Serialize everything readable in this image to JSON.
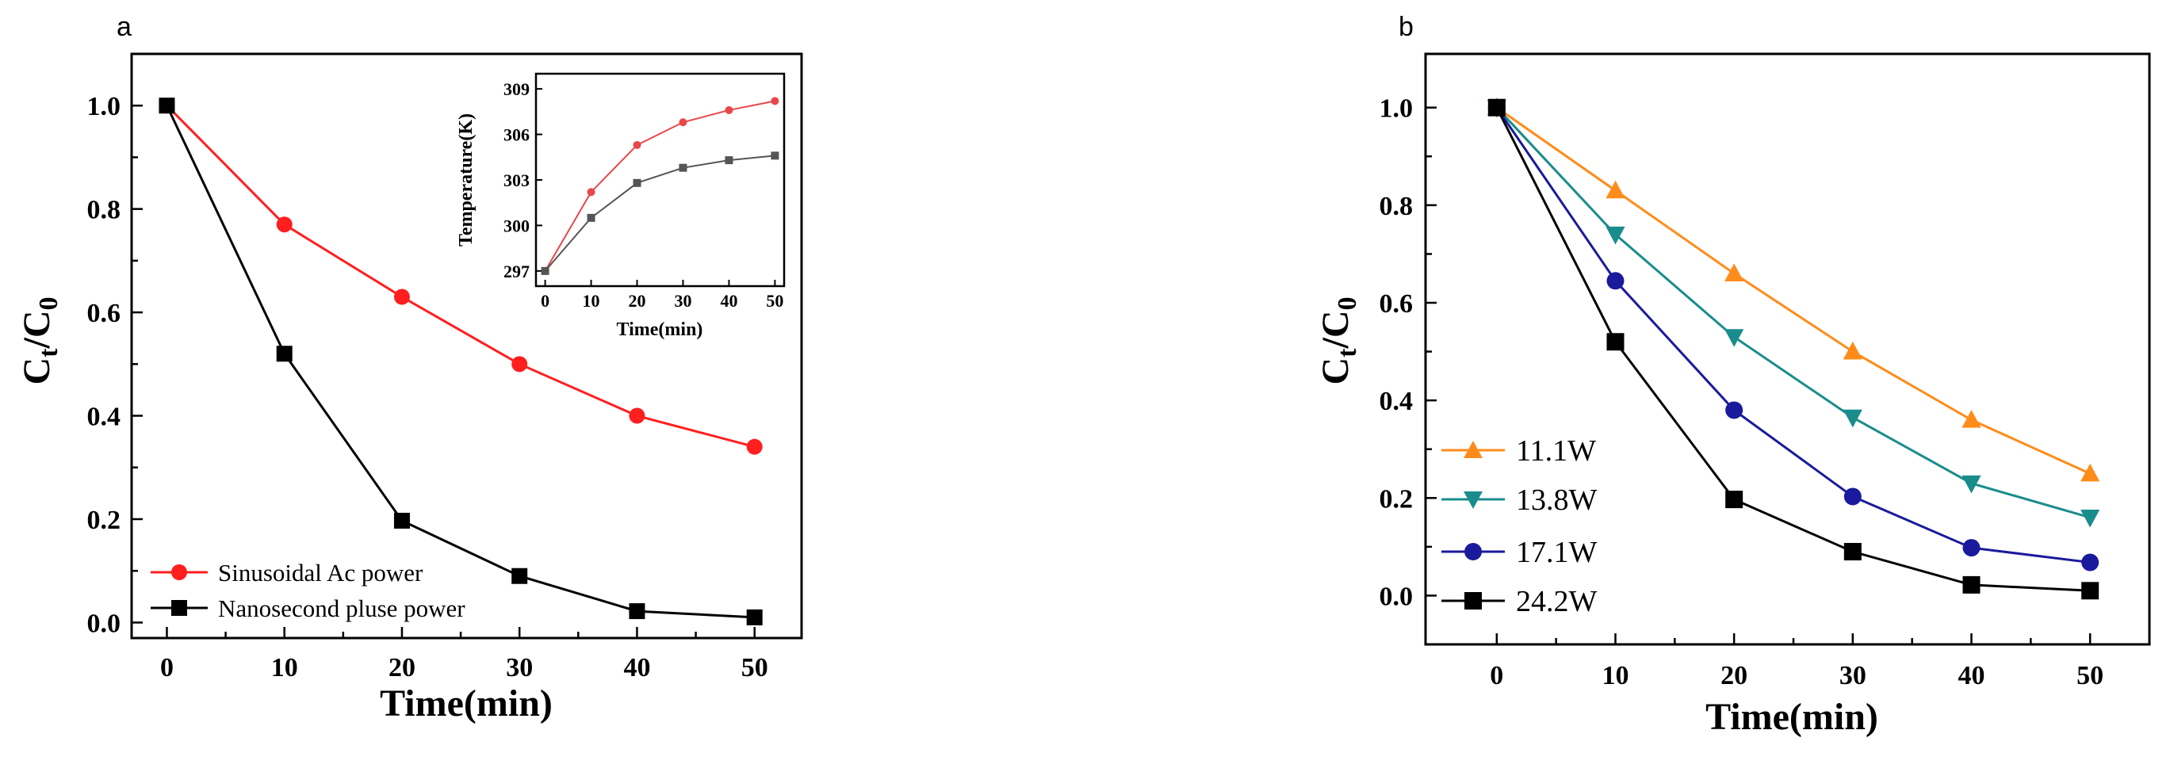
{
  "chart_data": [
    {
      "panel": "a",
      "type": "line",
      "xlabel": "Time(min)",
      "ylabel_main": "C",
      "ylabel_sub1": "t",
      "ylabel_slash": "/C",
      "ylabel_sub2": "0",
      "xlim": [
        -3,
        54
      ],
      "ylim": [
        -0.03,
        1.1
      ],
      "xticks": [
        0,
        10,
        20,
        30,
        40,
        50
      ],
      "yticks": [
        "0.0",
        "0.2",
        "0.4",
        "0.6",
        "0.8",
        "1.0"
      ],
      "grid": false,
      "legend_position": "bottom-left",
      "series": [
        {
          "name": "Sinusoidal Ac power",
          "color": "#ff1f1f",
          "marker": "circle",
          "x": [
            0,
            10,
            20,
            30,
            40,
            50
          ],
          "y": [
            1.0,
            0.77,
            0.63,
            0.5,
            0.4,
            0.34
          ]
        },
        {
          "name": "Nanosecond pluse power",
          "color": "#000000",
          "marker": "square",
          "x": [
            0,
            10,
            20,
            30,
            40,
            50
          ],
          "y": [
            1.0,
            0.52,
            0.197,
            0.09,
            0.022,
            0.01
          ]
        }
      ],
      "inset": {
        "type": "line",
        "xlabel": "Time(min)",
        "ylabel": "Temperature(K)",
        "xlim": [
          -2,
          52
        ],
        "ylim": [
          296,
          310
        ],
        "xticks": [
          0,
          10,
          20,
          30,
          40,
          50
        ],
        "yticks": [
          "297",
          "300",
          "303",
          "306",
          "309"
        ],
        "series": [
          {
            "color": "#e8474a",
            "marker": "circle",
            "x": [
              0,
              10,
              20,
              30,
              40,
              50
            ],
            "y": [
              297,
              302.2,
              305.3,
              306.8,
              307.6,
              308.2
            ]
          },
          {
            "color": "#555555",
            "marker": "square",
            "x": [
              0,
              10,
              20,
              30,
              40,
              50
            ],
            "y": [
              297,
              300.5,
              302.8,
              303.8,
              304.3,
              304.6
            ]
          }
        ]
      }
    },
    {
      "panel": "b",
      "type": "line",
      "xlabel": "Time(min)",
      "ylabel_main": "C",
      "ylabel_sub1": "t",
      "ylabel_slash": "/C",
      "ylabel_sub2": "0",
      "xlim": [
        -6,
        55
      ],
      "ylim": [
        -0.1,
        1.11
      ],
      "xticks": [
        0,
        10,
        20,
        30,
        40,
        50
      ],
      "yticks": [
        "0.0",
        "0.2",
        "0.4",
        "0.6",
        "0.8",
        "1.0"
      ],
      "grid": false,
      "legend_position": "bottom-left",
      "series": [
        {
          "name": "11.1W",
          "color": "#ff8c1a",
          "marker": "triangle-up",
          "x": [
            0,
            10,
            20,
            30,
            40,
            50
          ],
          "y": [
            1.0,
            0.83,
            0.66,
            0.5,
            0.36,
            0.25
          ]
        },
        {
          "name": "13.8W",
          "color": "#1a8c8c",
          "marker": "triangle-down",
          "x": [
            0,
            10,
            20,
            30,
            40,
            50
          ],
          "y": [
            1.0,
            0.74,
            0.53,
            0.365,
            0.23,
            0.16
          ]
        },
        {
          "name": "17.1W",
          "color": "#1a1a9c",
          "marker": "circle",
          "x": [
            0,
            10,
            20,
            30,
            40,
            50
          ],
          "y": [
            1.0,
            0.645,
            0.38,
            0.203,
            0.098,
            0.068
          ]
        },
        {
          "name": "24.2W",
          "color": "#000000",
          "marker": "square",
          "x": [
            0,
            10,
            20,
            30,
            40,
            50
          ],
          "y": [
            1.0,
            0.52,
            0.197,
            0.09,
            0.022,
            0.01
          ]
        }
      ]
    }
  ]
}
